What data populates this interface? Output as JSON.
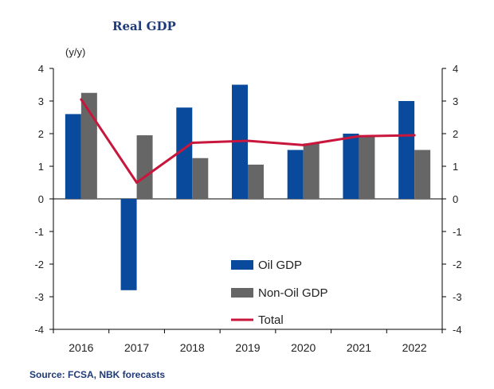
{
  "chart_data": {
    "type": "bar",
    "title": "Real GDP",
    "ylabel": "(y/y)",
    "xlabel": "",
    "categories": [
      "2016",
      "2017",
      "2018",
      "2019",
      "2020",
      "2021",
      "2022"
    ],
    "ylim": [
      -4,
      4
    ],
    "yticks": [
      4,
      3,
      2,
      1,
      0,
      -1,
      -2,
      -3,
      -4
    ],
    "series": [
      {
        "name": "Oil GDP",
        "kind": "bar",
        "color": "#0a4a9c",
        "values": [
          2.6,
          -2.8,
          2.8,
          3.5,
          1.5,
          2.0,
          3.0
        ]
      },
      {
        "name": "Non-Oil GDP",
        "kind": "bar",
        "color": "#666666",
        "values": [
          3.25,
          1.95,
          1.25,
          1.05,
          1.7,
          1.95,
          1.5
        ]
      },
      {
        "name": "Total",
        "kind": "line",
        "color": "#c8163c",
        "values": [
          3.05,
          0.5,
          1.72,
          1.78,
          1.65,
          1.92,
          1.95
        ]
      }
    ],
    "legend_position": "bottom-right",
    "source": "Source: FCSA, NBK forecasts"
  }
}
